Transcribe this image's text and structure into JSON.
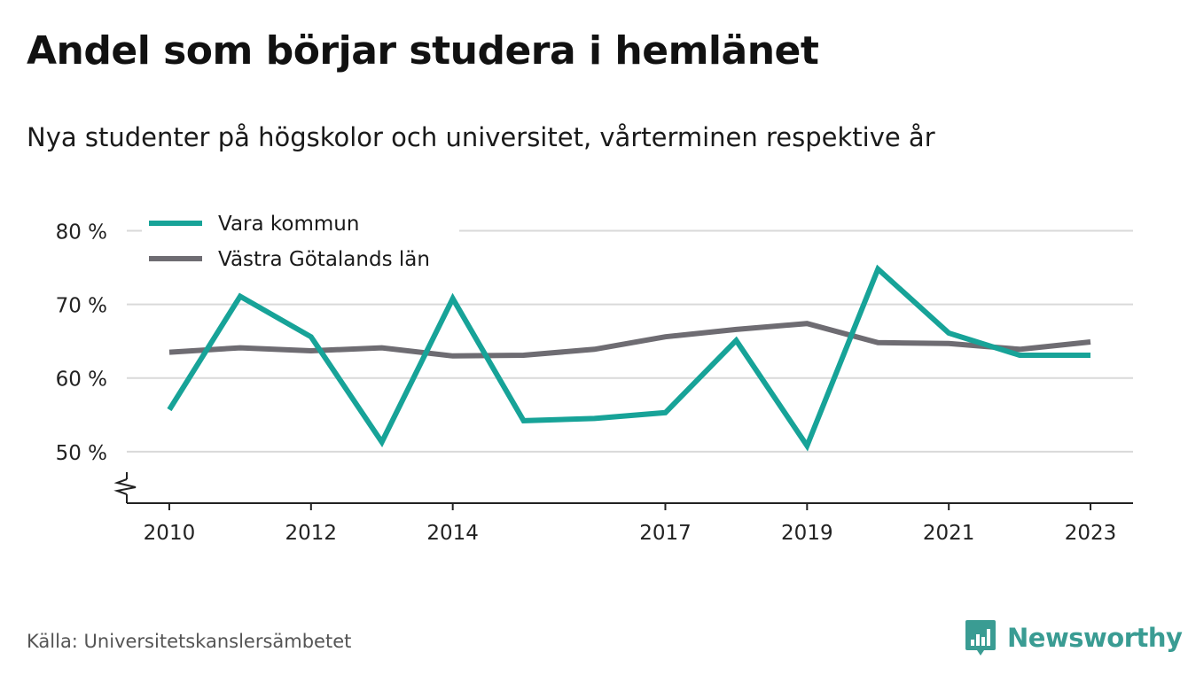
{
  "title": "Andel som börjar studera i hemlänet",
  "subtitle": "Nya studenter på högskolor och universitet, vårterminen respektive år",
  "source": "Källa: Universitetskanslersämbetet",
  "brand": "Newsworthy",
  "colors": {
    "vara": "#17a398",
    "vg": "#6e6c72",
    "grid": "#d9d9d9",
    "brand": "#3a9c93"
  },
  "chart_data": {
    "type": "line",
    "x": [
      2010,
      2011,
      2012,
      2013,
      2014,
      2015,
      2016,
      2017,
      2018,
      2019,
      2020,
      2021,
      2022,
      2023
    ],
    "x_tick_labels": [
      "2010",
      "2012",
      "2014",
      "2017",
      "2019",
      "2021",
      "2023"
    ],
    "x_tick_values": [
      2010,
      2012,
      2014,
      2017,
      2019,
      2021,
      2023
    ],
    "y_tick_labels": [
      "80 %",
      "70 %",
      "60 %",
      "50 %"
    ],
    "y_tick_values": [
      80,
      70,
      60,
      50
    ],
    "ylim": [
      43,
      80
    ],
    "xlim": [
      2009.4,
      2023.6
    ],
    "y_axis_break": true,
    "grid": true,
    "legend_position": "top-left",
    "series": [
      {
        "name": "Vara kommun",
        "color": "#17a398",
        "values": [
          55.7,
          71.1,
          65.6,
          51.3,
          70.8,
          54.2,
          54.5,
          55.3,
          65.1,
          50.8,
          74.8,
          66.1,
          63.1,
          63.1
        ]
      },
      {
        "name": "Västra Götalands län",
        "color": "#6e6c72",
        "values": [
          63.5,
          64.1,
          63.7,
          64.1,
          63.0,
          63.1,
          63.9,
          65.6,
          66.6,
          67.4,
          64.8,
          64.7,
          63.9,
          64.9
        ]
      }
    ]
  }
}
